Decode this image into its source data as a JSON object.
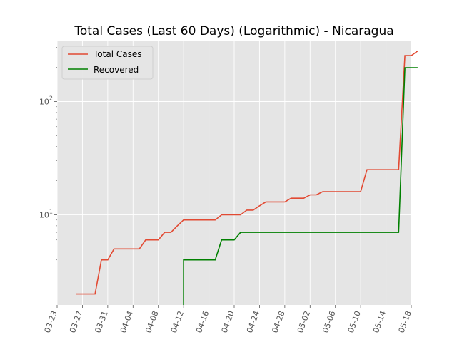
{
  "chart_data": {
    "type": "line",
    "title": "Total Cases (Last 60 Days) (Logarithmic) - Nicaragua",
    "xlabel": "",
    "ylabel": "",
    "yscale": "log",
    "grid": true,
    "legend_position": "top-left",
    "xlim": [
      "2020-03-23",
      "2020-05-18"
    ],
    "ylim": [
      1.6,
      340
    ],
    "x_ticks": [
      "03-23",
      "03-27",
      "03-31",
      "04-04",
      "04-08",
      "04-12",
      "04-16",
      "04-20",
      "04-24",
      "04-28",
      "05-02",
      "05-06",
      "05-10",
      "05-14",
      "05-18"
    ],
    "x_tick_dates": [
      "2020-03-23",
      "2020-03-27",
      "2020-03-31",
      "2020-04-04",
      "2020-04-08",
      "2020-04-12",
      "2020-04-16",
      "2020-04-20",
      "2020-04-24",
      "2020-04-28",
      "2020-05-02",
      "2020-05-06",
      "2020-05-10",
      "2020-05-14",
      "2020-05-18"
    ],
    "y_ticks": [
      {
        "value": 10,
        "label": "10",
        "exp": "1"
      },
      {
        "value": 100,
        "label": "10",
        "exp": "2"
      }
    ],
    "series": [
      {
        "name": "Total Cases",
        "color": "#e24a33",
        "points": [
          [
            "2020-03-26",
            2
          ],
          [
            "2020-03-27",
            2
          ],
          [
            "2020-03-28",
            2
          ],
          [
            "2020-03-29",
            2
          ],
          [
            "2020-03-30",
            4
          ],
          [
            "2020-03-31",
            4
          ],
          [
            "2020-04-01",
            5
          ],
          [
            "2020-04-02",
            5
          ],
          [
            "2020-04-03",
            5
          ],
          [
            "2020-04-04",
            5
          ],
          [
            "2020-04-05",
            5
          ],
          [
            "2020-04-06",
            6
          ],
          [
            "2020-04-07",
            6
          ],
          [
            "2020-04-08",
            6
          ],
          [
            "2020-04-09",
            7
          ],
          [
            "2020-04-10",
            7
          ],
          [
            "2020-04-11",
            8
          ],
          [
            "2020-04-12",
            9
          ],
          [
            "2020-04-13",
            9
          ],
          [
            "2020-04-14",
            9
          ],
          [
            "2020-04-15",
            9
          ],
          [
            "2020-04-16",
            9
          ],
          [
            "2020-04-17",
            9
          ],
          [
            "2020-04-18",
            10
          ],
          [
            "2020-04-19",
            10
          ],
          [
            "2020-04-20",
            10
          ],
          [
            "2020-04-21",
            10
          ],
          [
            "2020-04-22",
            11
          ],
          [
            "2020-04-23",
            11
          ],
          [
            "2020-04-24",
            12
          ],
          [
            "2020-04-25",
            13
          ],
          [
            "2020-04-26",
            13
          ],
          [
            "2020-04-27",
            13
          ],
          [
            "2020-04-28",
            13
          ],
          [
            "2020-04-29",
            14
          ],
          [
            "2020-04-30",
            14
          ],
          [
            "2020-05-01",
            14
          ],
          [
            "2020-05-02",
            15
          ],
          [
            "2020-05-03",
            15
          ],
          [
            "2020-05-04",
            16
          ],
          [
            "2020-05-05",
            16
          ],
          [
            "2020-05-06",
            16
          ],
          [
            "2020-05-07",
            16
          ],
          [
            "2020-05-08",
            16
          ],
          [
            "2020-05-09",
            16
          ],
          [
            "2020-05-10",
            16
          ],
          [
            "2020-05-11",
            25
          ],
          [
            "2020-05-12",
            25
          ],
          [
            "2020-05-13",
            25
          ],
          [
            "2020-05-14",
            25
          ],
          [
            "2020-05-15",
            25
          ],
          [
            "2020-05-16",
            25
          ],
          [
            "2020-05-17",
            254
          ],
          [
            "2020-05-18",
            254
          ],
          [
            "2020-05-19",
            279
          ]
        ]
      },
      {
        "name": "Recovered",
        "color": "#008000",
        "points": [
          [
            "2020-04-12",
            1.6
          ],
          [
            "2020-04-12",
            4
          ],
          [
            "2020-04-13",
            4
          ],
          [
            "2020-04-14",
            4
          ],
          [
            "2020-04-15",
            4
          ],
          [
            "2020-04-16",
            4
          ],
          [
            "2020-04-17",
            4
          ],
          [
            "2020-04-18",
            6
          ],
          [
            "2020-04-19",
            6
          ],
          [
            "2020-04-20",
            6
          ],
          [
            "2020-04-21",
            7
          ],
          [
            "2020-04-22",
            7
          ],
          [
            "2020-04-23",
            7
          ],
          [
            "2020-04-24",
            7
          ],
          [
            "2020-04-25",
            7
          ],
          [
            "2020-04-26",
            7
          ],
          [
            "2020-04-27",
            7
          ],
          [
            "2020-04-28",
            7
          ],
          [
            "2020-04-29",
            7
          ],
          [
            "2020-04-30",
            7
          ],
          [
            "2020-05-01",
            7
          ],
          [
            "2020-05-02",
            7
          ],
          [
            "2020-05-03",
            7
          ],
          [
            "2020-05-04",
            7
          ],
          [
            "2020-05-05",
            7
          ],
          [
            "2020-05-06",
            7
          ],
          [
            "2020-05-07",
            7
          ],
          [
            "2020-05-08",
            7
          ],
          [
            "2020-05-09",
            7
          ],
          [
            "2020-05-10",
            7
          ],
          [
            "2020-05-11",
            7
          ],
          [
            "2020-05-12",
            7
          ],
          [
            "2020-05-13",
            7
          ],
          [
            "2020-05-14",
            7
          ],
          [
            "2020-05-15",
            7
          ],
          [
            "2020-05-16",
            7
          ],
          [
            "2020-05-17",
            199
          ],
          [
            "2020-05-18",
            199
          ],
          [
            "2020-05-19",
            199
          ]
        ]
      }
    ]
  }
}
